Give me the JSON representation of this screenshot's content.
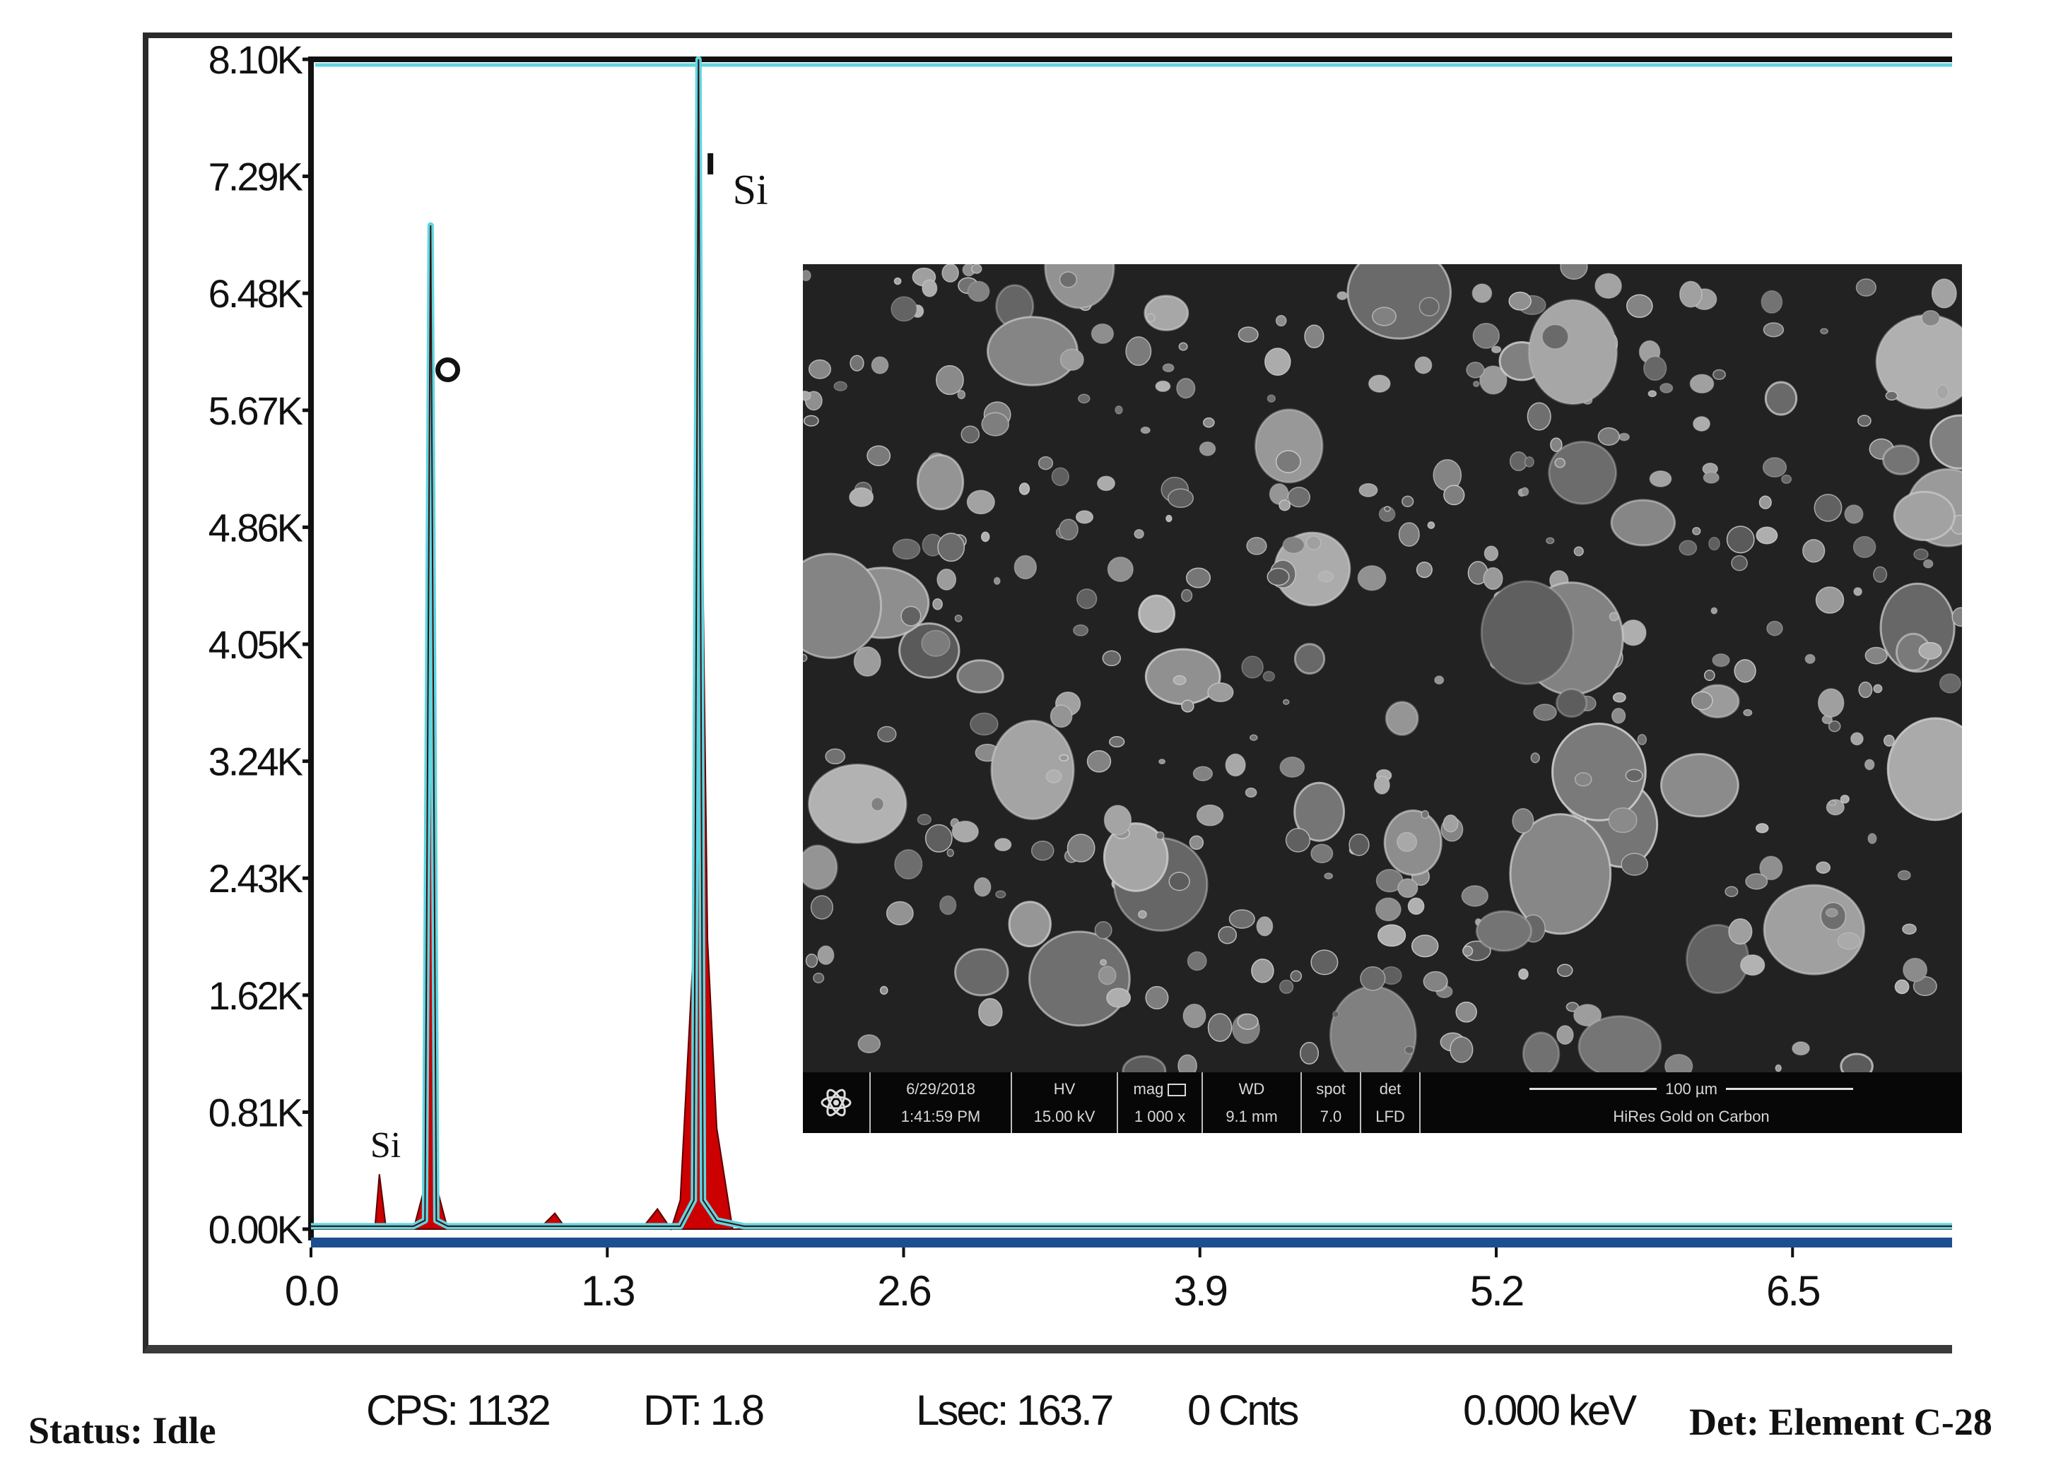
{
  "chart_data": {
    "type": "line",
    "title": "",
    "xlabel": "",
    "ylabel": "",
    "xlim": [
      0.0,
      7.2
    ],
    "ylim": [
      0,
      8100
    ],
    "x_ticks": [
      "0.0",
      "1.3",
      "2.6",
      "3.9",
      "5.2",
      "6.5"
    ],
    "x_tick_values": [
      0.0,
      1.3,
      2.6,
      3.9,
      5.2,
      6.5
    ],
    "y_ticks": [
      "0.00K",
      "0.81K",
      "1.62K",
      "2.43K",
      "3.24K",
      "4.05K",
      "4.86K",
      "5.67K",
      "6.48K",
      "7.29K",
      "8.10K"
    ],
    "y_tick_values": [
      0,
      810,
      1620,
      2430,
      3240,
      4050,
      4860,
      5670,
      6480,
      7290,
      8100
    ],
    "series": [
      {
        "color": "#cc0000",
        "x": [
          0.0,
          0.28,
          0.3,
          0.33,
          0.45,
          0.5,
          0.525,
          0.55,
          0.6,
          1.0,
          1.07,
          1.12,
          1.45,
          1.52,
          1.58,
          1.62,
          1.68,
          1.7,
          1.74,
          1.78,
          1.85,
          2.0,
          7.2
        ],
        "y": [
          0,
          0,
          380,
          0,
          0,
          300,
          6900,
          300,
          0,
          0,
          110,
          0,
          0,
          140,
          0,
          200,
          2000,
          6900,
          2000,
          700,
          0,
          0,
          0
        ]
      },
      {
        "color": "#5fd6e0",
        "x": [
          0.0,
          0.45,
          0.5,
          0.525,
          0.55,
          0.6,
          1.62,
          1.68,
          1.7,
          1.72,
          1.78,
          1.9,
          2.0,
          7.2
        ],
        "y": [
          20,
          20,
          60,
          6950,
          60,
          20,
          20,
          200,
          8100,
          200,
          60,
          20,
          20,
          20
        ]
      }
    ],
    "annotations": [
      {
        "text": "O",
        "x": 0.6,
        "y": 5950
      },
      {
        "text": "Si",
        "x": 1.85,
        "y": 7100
      },
      {
        "text": "Si",
        "x": 0.26,
        "y": 500
      }
    ]
  },
  "sem_inset": {
    "date": "6/29/2018",
    "time": "1:41:59 PM",
    "hv_label": "HV",
    "hv_value": "15.00 kV",
    "mag_label": "mag",
    "mag_value": "1 000 x",
    "wd_label": "WD",
    "wd_value": "9.1 mm",
    "spot_label": "spot",
    "spot_value": "7.0",
    "det_label": "det",
    "det_value": "LFD",
    "scale_label": "100 µm",
    "caption": "HiRes Gold on Carbon",
    "logo_icon": "atom-logo-icon"
  },
  "status_bar": {
    "status": "Status: Idle",
    "cps": "CPS: 1132",
    "dt": "DT: 1.8",
    "lsec": "Lsec: 163.7",
    "cnts": "0 Cnts",
    "kev": "0.000 keV",
    "det": "Det: Element C-28"
  }
}
